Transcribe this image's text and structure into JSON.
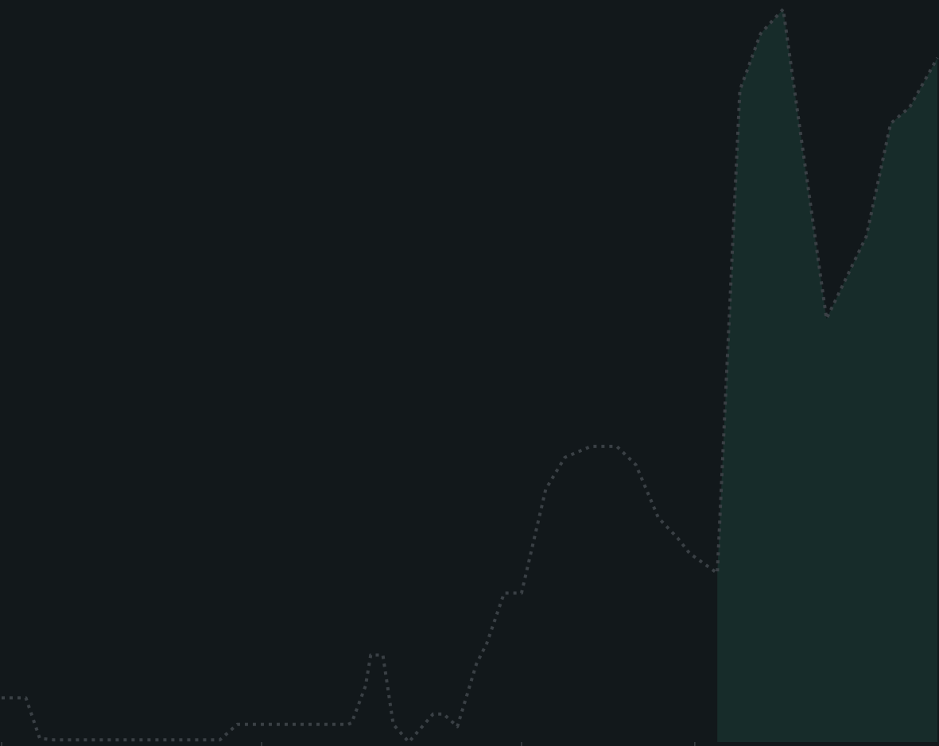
{
  "colors": {
    "background": "#12181b",
    "line": "#3a4045",
    "fill_highlight": "#172c2a"
  },
  "chart_data": {
    "type": "area",
    "title": "",
    "xlabel": "",
    "ylabel": "",
    "grid": false,
    "xlim": [
      0,
      54
    ],
    "ylim": [
      0,
      100
    ],
    "x_ticks": [
      0,
      15,
      30,
      40
    ],
    "highlight_from_x": 41.3,
    "series": [
      {
        "x": [
          0,
          1.4,
          2.2,
          3,
          5,
          10,
          12.6,
          13.6,
          15,
          20,
          20.2,
          21,
          21.3,
          22,
          22.6,
          23.5,
          24.9,
          25.5,
          26.3,
          27.4,
          28,
          29,
          30,
          31.4,
          32.5,
          34,
          35.5,
          36.6,
          37.9,
          39,
          39.7,
          41.3,
          42.6,
          43.8,
          45.1,
          47.6,
          49.9,
          51.3,
          52.4,
          54
        ],
        "y": [
          6,
          6,
          0.5,
          0.3,
          0.3,
          0.3,
          0.3,
          2.4,
          2.4,
          2.4,
          2.6,
          7.6,
          11.8,
          11.8,
          2.4,
          0,
          3.8,
          3.8,
          2.1,
          10.6,
          13.4,
          20.2,
          20.2,
          34.3,
          38.6,
          40.1,
          40.1,
          37.6,
          30.4,
          27.7,
          25.6,
          22.9,
          88.4,
          96.1,
          99.4,
          57.4,
          68.6,
          83.9,
          86.1,
          92.8
        ]
      }
    ]
  }
}
